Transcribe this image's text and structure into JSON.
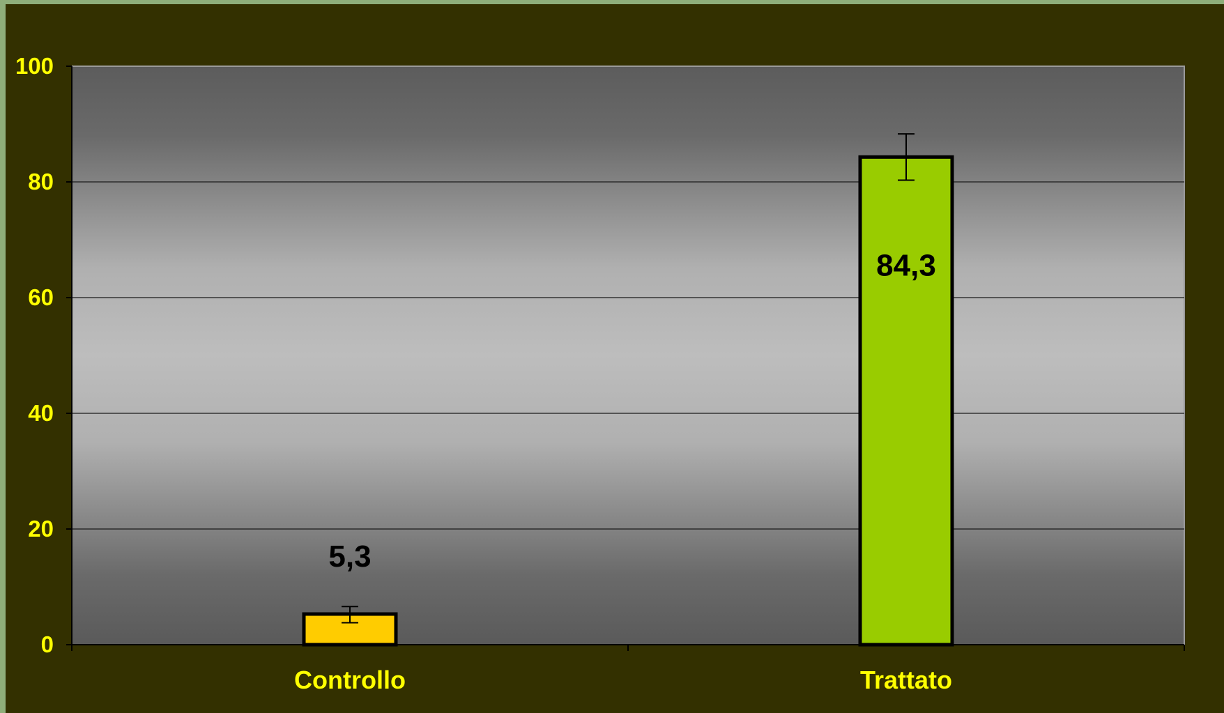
{
  "chart_data": {
    "type": "bar",
    "categories": [
      "Controllo",
      "Trattato"
    ],
    "values": [
      5.3,
      84.3
    ],
    "value_labels": [
      "5,3",
      "84,3"
    ],
    "error_bars": [
      {
        "low": 3.8,
        "high": 6.6
      },
      {
        "low": 80.3,
        "high": 88.3
      }
    ],
    "ylim": [
      0,
      100
    ],
    "yticks": [
      "0",
      "20",
      "40",
      "60",
      "80",
      "100"
    ],
    "ytick_values": [
      0,
      20,
      40,
      60,
      80,
      100
    ],
    "grid": true,
    "bar_colors": [
      "#ffcc00",
      "#99cc00"
    ],
    "title": "",
    "xlabel": "",
    "ylabel": ""
  },
  "colors": {
    "background": "#333000",
    "tick_text": "#ffff00",
    "bar_border": "#000000",
    "grid": "#1a1a1a"
  }
}
